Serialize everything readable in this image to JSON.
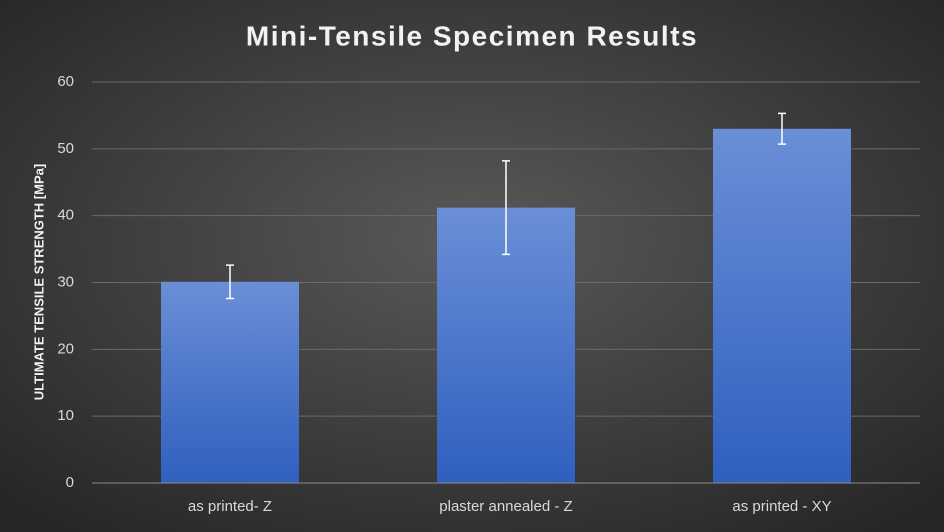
{
  "chart_data": {
    "type": "bar",
    "title": "Mini-Tensile Specimen Results",
    "y_label": "ULTIMATE TENSILE STRENGTH [MPa]",
    "categories": [
      "as printed- Z",
      "plaster annealed - Z",
      "as printed - XY"
    ],
    "values": [
      30.1,
      41.2,
      53.0
    ],
    "errors": [
      2.5,
      7.0,
      2.3
    ],
    "color": "#4a76cc",
    "ylim": [
      0,
      60
    ],
    "yticks": [
      0,
      10,
      20,
      30,
      40,
      50,
      60
    ],
    "grid": true
  }
}
